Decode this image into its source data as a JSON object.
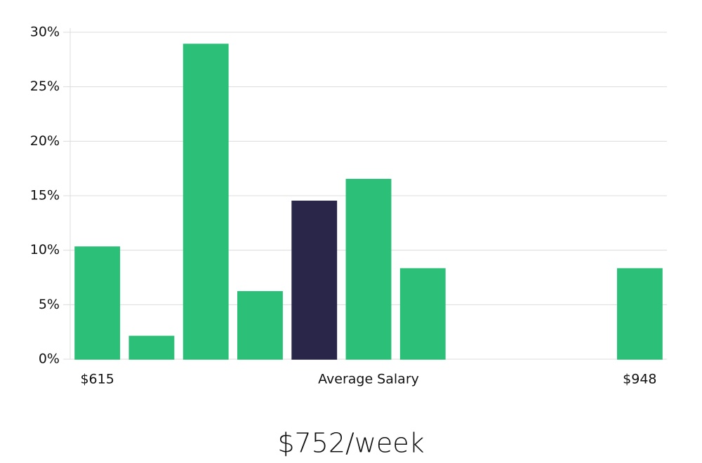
{
  "chart_data": {
    "type": "bar",
    "categories": [
      "$615",
      null,
      null,
      null,
      null,
      null,
      null,
      null,
      null,
      null,
      "$948"
    ],
    "values": [
      10.3,
      2.1,
      28.9,
      6.2,
      14.5,
      16.5,
      8.3,
      0,
      0,
      0,
      8.3
    ],
    "colors": [
      "#2bbf77",
      "#2bbf77",
      "#2bbf77",
      "#2bbf77",
      "#29264a",
      "#2bbf77",
      "#2bbf77",
      "#2bbf77",
      "#2bbf77",
      "#2bbf77",
      "#2bbf77"
    ],
    "xlabel": "Average Salary",
    "annotation": "$752/week",
    "ylim": [
      0,
      30
    ],
    "yticks": [
      {
        "value": 0,
        "label": "0%"
      },
      {
        "value": 5,
        "label": "5%"
      },
      {
        "value": 10,
        "label": "10%"
      },
      {
        "value": 15,
        "label": "15%"
      },
      {
        "value": 20,
        "label": "20%"
      },
      {
        "value": 25,
        "label": "25%"
      },
      {
        "value": 30,
        "label": "30%"
      }
    ],
    "grid": true
  }
}
